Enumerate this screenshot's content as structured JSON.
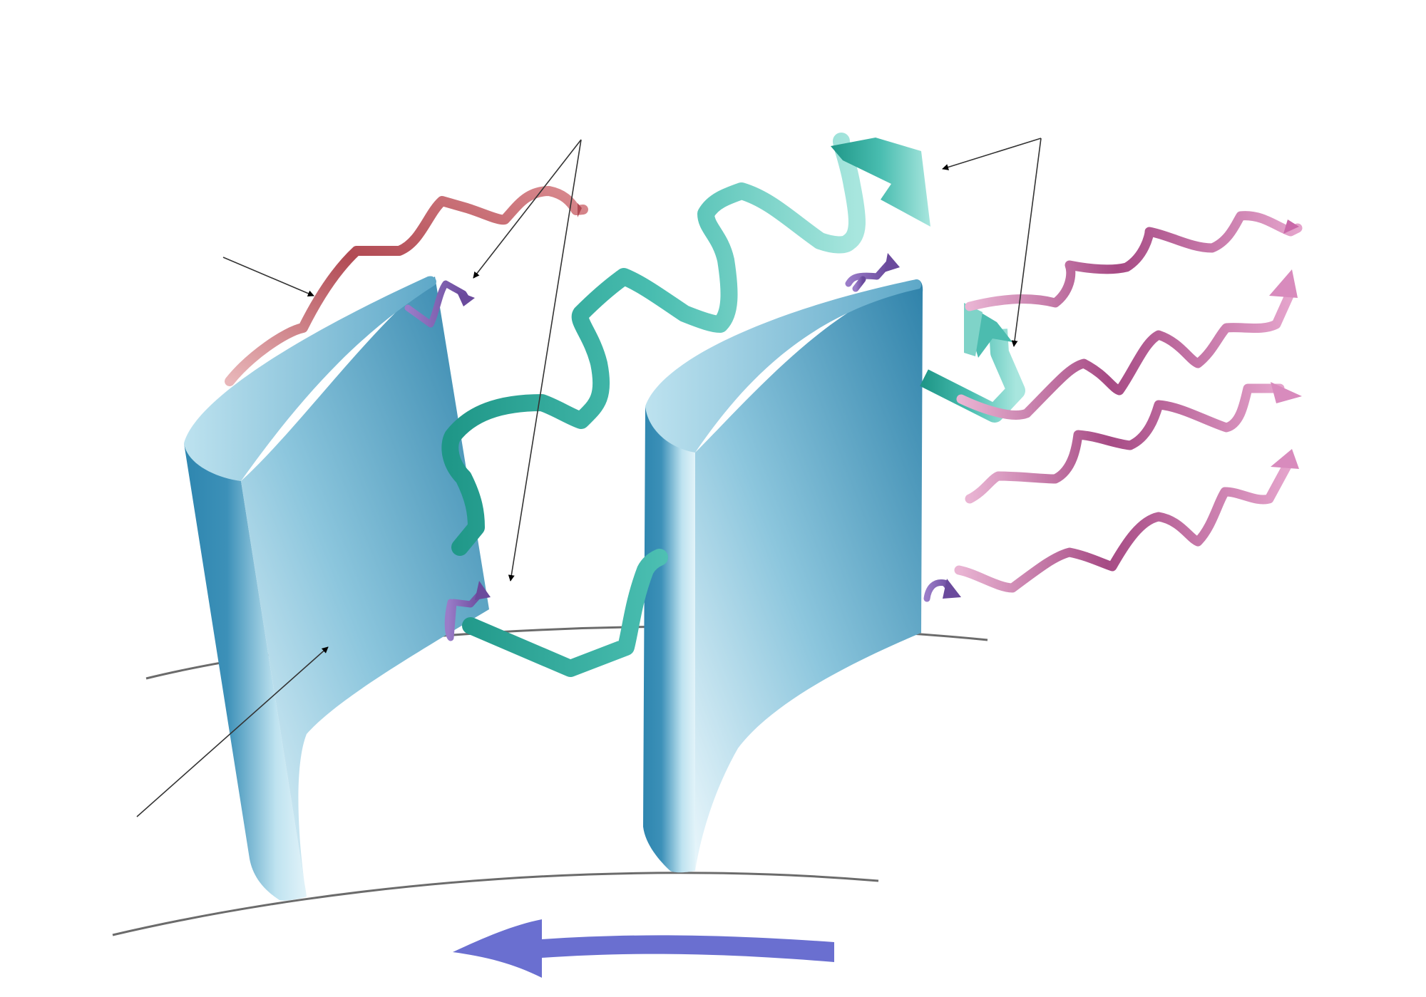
{
  "figure": {
    "colors": {
      "background": "#ffffff",
      "blade_light": "#d6eef7",
      "blade_mid": "#7fbdd6",
      "blade_dark": "#2a7ea5",
      "wake_vortex": "#2eab9c",
      "wake_vortex_light": "#b6ece5",
      "tip_vortex": "#b04a54",
      "tip_vortex_light": "#e6aeb3",
      "secondary_vortex": "#7a5aa8",
      "shed_vortices": "#a84d86",
      "shed_vortices_light": "#e7a9cf",
      "rotation_arrow": "#6a6fd0",
      "leader_lines": "#333333",
      "hub_lines": "#6b6b6b"
    },
    "elements": {
      "blades": 2,
      "wake_ribbons": 1,
      "tip_ribbons": 1,
      "secondary_vortices": 5,
      "shed_wave_ribbons": 4,
      "leader_arrows": 6,
      "rotation_direction": "right-to-left"
    }
  }
}
